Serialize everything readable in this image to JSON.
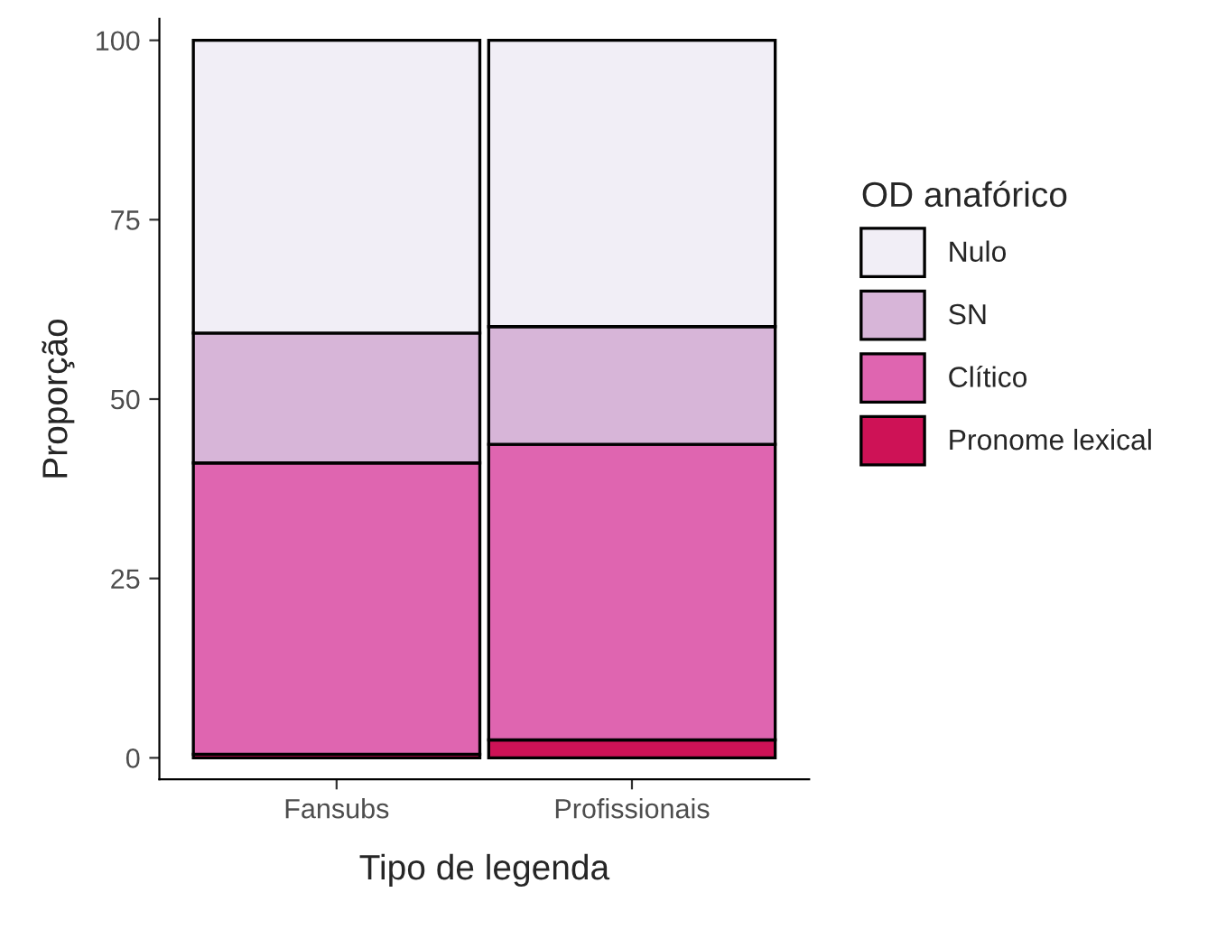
{
  "chart_data": {
    "type": "bar",
    "stacked": true,
    "xlabel": "Tipo de legenda",
    "ylabel": "Proporção",
    "legend_title": "OD anafórico",
    "legend": "right",
    "categories": [
      "Fansubs",
      "Profissionais"
    ],
    "series": [
      {
        "name": "Pronome lexical",
        "color": "#ce1256",
        "values": [
          0.5,
          2.5
        ]
      },
      {
        "name": "Clítico",
        "color": "#df65b0",
        "values": [
          40.6,
          41.2
        ]
      },
      {
        "name": "SN",
        "color": "#d7b5d8",
        "values": [
          18.1,
          16.4
        ]
      },
      {
        "name": "Nulo",
        "color": "#f1eef6",
        "values": [
          40.8,
          39.9
        ]
      }
    ],
    "ylim": [
      -3,
      103
    ],
    "yticks": [
      0,
      25,
      50,
      75,
      100
    ],
    "grid": false
  }
}
